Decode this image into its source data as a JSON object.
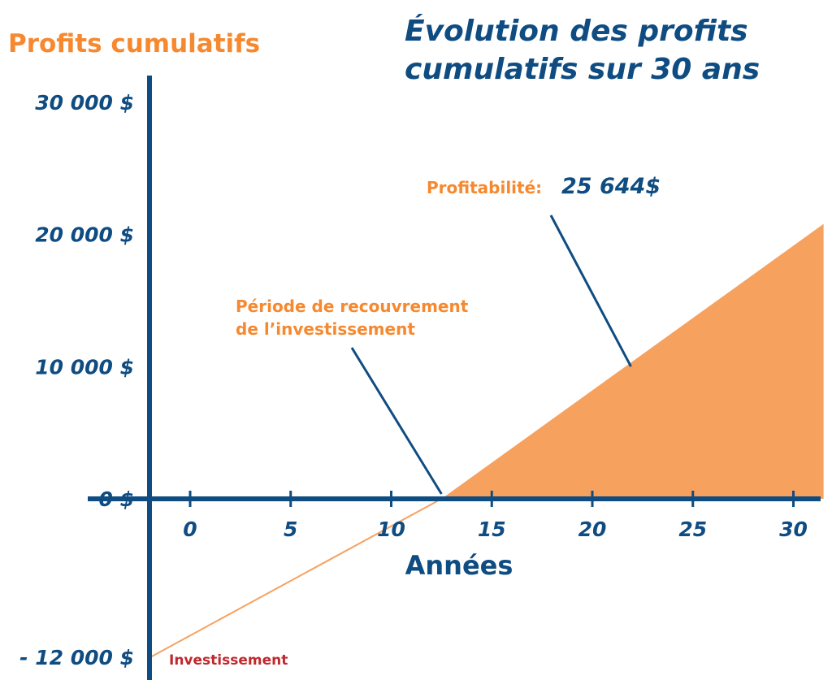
{
  "chart_data": {
    "type": "area",
    "title_lines": [
      "Évolution des profits",
      "cumulatifs sur 30 ans"
    ],
    "ylabel": "Profits cumulatifs",
    "xlabel": "Années",
    "x_ticks": [
      0,
      5,
      10,
      15,
      20,
      25,
      30
    ],
    "y_ticks": [
      {
        "value": 30000,
        "label": "30 000 $"
      },
      {
        "value": 20000,
        "label": "20 000 $"
      },
      {
        "value": 10000,
        "label": "10 000 $"
      },
      {
        "value": 0,
        "label": "0 $"
      },
      {
        "value": -12000,
        "label": "- 12 000 $"
      }
    ],
    "xlim": [
      -2.3,
      31.5
    ],
    "ylim": [
      -13000,
      33000
    ],
    "series": [
      {
        "x": [
          -2,
          12.5,
          31.5
        ],
        "y": [
          -12000,
          0,
          20800
        ]
      }
    ],
    "annotations": {
      "payback": {
        "lines": [
          "Période de recouvrement",
          "de l’investissement"
        ],
        "x": 12.5,
        "y": 0
      },
      "profitability": {
        "label": "Profitabilité:",
        "value": "25 644$",
        "x": 22,
        "y": 10200
      },
      "investment": {
        "label": "Investissement",
        "x": -2,
        "y": -12000
      }
    },
    "grid": false
  },
  "colors": {
    "blue": "#0f4c81",
    "orange": "#f7a15f",
    "orange_text": "#f6892f",
    "red": "#c0282c"
  }
}
